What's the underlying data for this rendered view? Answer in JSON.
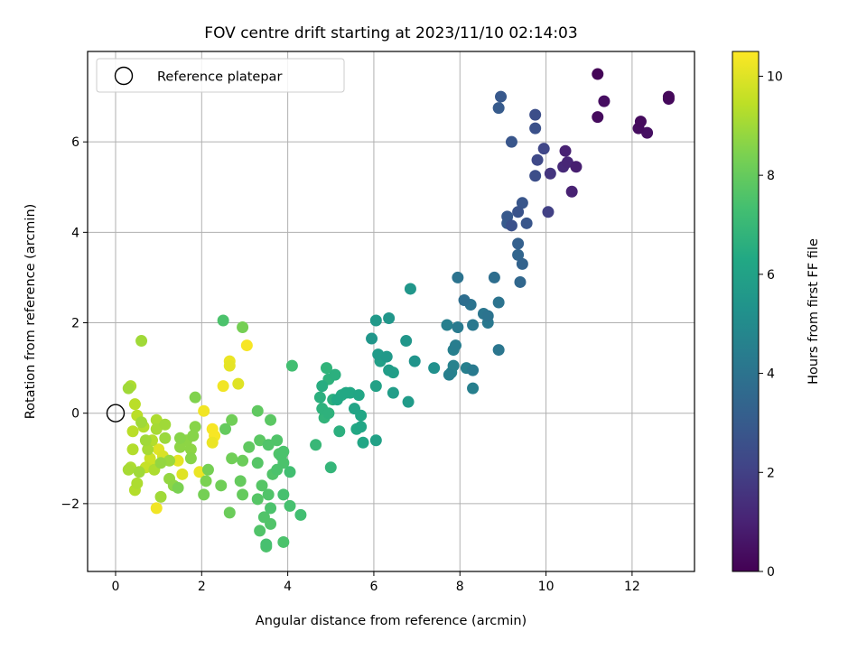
{
  "chart_data": {
    "type": "scatter",
    "title": "FOV centre drift starting at 2023/11/10 02:14:03",
    "xlabel": "Angular distance from reference (arcmin)",
    "ylabel": "Rotation from reference (arcmin)",
    "xlim": [
      -0.65,
      13.45
    ],
    "ylim": [
      -3.5,
      8.0
    ],
    "xticks": [
      0,
      2,
      4,
      6,
      8,
      10,
      12
    ],
    "yticks": [
      -2,
      0,
      2,
      4,
      6
    ],
    "grid": true,
    "legend": {
      "placement": "top-left",
      "entries": [
        "Reference platepar"
      ]
    },
    "reference_point": {
      "x": 0,
      "y": 0,
      "label": "Reference platepar"
    },
    "colorbar": {
      "label": "Hours from first FF file",
      "colormap": "viridis",
      "range": [
        0,
        10.5
      ],
      "ticks": [
        0,
        2,
        4,
        6,
        8,
        10
      ]
    },
    "points": [
      [
        11.2,
        7.5,
        0.1
      ],
      [
        12.85,
        7.0,
        0.2
      ],
      [
        12.85,
        6.95,
        0.25
      ],
      [
        11.35,
        6.9,
        0.4
      ],
      [
        12.2,
        6.45,
        0.3
      ],
      [
        12.15,
        6.3,
        0.35
      ],
      [
        12.35,
        6.2,
        0.45
      ],
      [
        11.2,
        6.55,
        0.3
      ],
      [
        10.45,
        5.8,
        1.0
      ],
      [
        10.5,
        5.55,
        1.1
      ],
      [
        10.4,
        5.45,
        1.2
      ],
      [
        10.7,
        5.45,
        0.9
      ],
      [
        10.6,
        4.9,
        1.0
      ],
      [
        10.1,
        5.3,
        1.6
      ],
      [
        9.95,
        5.85,
        2.2
      ],
      [
        9.8,
        5.6,
        2.3
      ],
      [
        9.75,
        5.25,
        2.5
      ],
      [
        10.05,
        4.45,
        2.0
      ],
      [
        9.75,
        6.6,
        2.5
      ],
      [
        9.75,
        6.3,
        2.6
      ],
      [
        9.2,
        6.0,
        2.8
      ],
      [
        8.95,
        7.0,
        2.9
      ],
      [
        8.9,
        6.75,
        3.0
      ],
      [
        9.45,
        4.65,
        2.8
      ],
      [
        9.35,
        4.45,
        2.7
      ],
      [
        9.55,
        4.2,
        2.8
      ],
      [
        9.1,
        4.35,
        2.9
      ],
      [
        9.1,
        4.2,
        3.0
      ],
      [
        9.2,
        4.15,
        2.6
      ],
      [
        9.35,
        3.75,
        3.2
      ],
      [
        9.35,
        3.5,
        3.4
      ],
      [
        9.45,
        3.3,
        3.3
      ],
      [
        9.4,
        2.9,
        3.5
      ],
      [
        8.8,
        3.0,
        3.8
      ],
      [
        7.95,
        3.0,
        4.0
      ],
      [
        8.9,
        2.45,
        4.0
      ],
      [
        8.1,
        2.5,
        3.8
      ],
      [
        8.25,
        2.4,
        4.0
      ],
      [
        8.55,
        2.2,
        4.1
      ],
      [
        8.65,
        2.15,
        4.0
      ],
      [
        8.65,
        2.0,
        4.2
      ],
      [
        7.7,
        1.95,
        4.5
      ],
      [
        7.95,
        1.9,
        4.3
      ],
      [
        8.3,
        1.95,
        4.2
      ],
      [
        7.85,
        1.4,
        4.5
      ],
      [
        7.9,
        1.5,
        4.4
      ],
      [
        8.9,
        1.4,
        4.1
      ],
      [
        7.85,
        1.05,
        4.6
      ],
      [
        8.15,
        1.0,
        4.5
      ],
      [
        8.3,
        0.95,
        4.3
      ],
      [
        7.8,
        0.9,
        4.7
      ],
      [
        7.75,
        0.85,
        4.5
      ],
      [
        8.3,
        0.55,
        4.5
      ],
      [
        7.4,
        1.0,
        5.2
      ],
      [
        6.85,
        2.75,
        5.5
      ],
      [
        6.35,
        2.1,
        5.5
      ],
      [
        6.05,
        2.05,
        5.6
      ],
      [
        5.95,
        1.65,
        5.5
      ],
      [
        6.75,
        1.6,
        5.5
      ],
      [
        6.1,
        1.3,
        5.7
      ],
      [
        6.3,
        1.25,
        5.6
      ],
      [
        6.95,
        1.15,
        5.4
      ],
      [
        6.15,
        1.15,
        5.9
      ],
      [
        6.35,
        0.95,
        5.8
      ],
      [
        6.45,
        0.9,
        5.9
      ],
      [
        6.05,
        0.6,
        6.0
      ],
      [
        6.45,
        0.45,
        5.8
      ],
      [
        6.8,
        0.25,
        5.7
      ],
      [
        6.05,
        -0.6,
        6.0
      ],
      [
        5.75,
        -0.65,
        6.2
      ],
      [
        5.7,
        -0.3,
        6.2
      ],
      [
        5.6,
        -0.35,
        6.3
      ],
      [
        5.55,
        0.1,
        6.1
      ],
      [
        5.7,
        -0.05,
        6.2
      ],
      [
        5.65,
        0.4,
        6.2
      ],
      [
        5.45,
        0.45,
        6.3
      ],
      [
        5.35,
        0.45,
        6.3
      ],
      [
        5.25,
        0.4,
        6.4
      ],
      [
        5.15,
        0.3,
        6.3
      ],
      [
        5.2,
        -0.4,
        6.6
      ],
      [
        5.1,
        0.85,
        6.6
      ],
      [
        4.9,
        1.0,
        6.8
      ],
      [
        4.95,
        0.75,
        6.7
      ],
      [
        4.8,
        0.6,
        6.5
      ],
      [
        4.75,
        0.35,
        6.6
      ],
      [
        4.8,
        0.1,
        6.7
      ],
      [
        4.85,
        -0.1,
        6.8
      ],
      [
        4.95,
        0.0,
        6.7
      ],
      [
        5.05,
        0.3,
        6.6
      ],
      [
        4.65,
        -0.7,
        7.0
      ],
      [
        5.0,
        -1.2,
        6.9
      ],
      [
        4.1,
        1.05,
        7.3
      ],
      [
        4.3,
        -2.25,
        7.3
      ],
      [
        4.05,
        -2.05,
        7.4
      ],
      [
        4.05,
        -1.3,
        7.3
      ],
      [
        3.9,
        -1.8,
        7.4
      ],
      [
        3.9,
        -1.1,
        7.5
      ],
      [
        3.9,
        -0.85,
        7.5
      ],
      [
        3.85,
        -0.95,
        7.5
      ],
      [
        3.8,
        -0.9,
        7.6
      ],
      [
        3.9,
        -2.85,
        7.5
      ],
      [
        3.75,
        -0.6,
        7.6
      ],
      [
        3.75,
        -1.25,
        7.5
      ],
      [
        3.65,
        -1.35,
        7.6
      ],
      [
        3.6,
        -2.1,
        7.5
      ],
      [
        3.6,
        -2.45,
        7.6
      ],
      [
        3.55,
        -1.8,
        7.6
      ],
      [
        3.5,
        -2.9,
        7.4
      ],
      [
        3.5,
        -2.95,
        7.5
      ],
      [
        3.45,
        -2.3,
        7.6
      ],
      [
        3.4,
        -1.6,
        7.7
      ],
      [
        3.35,
        -2.6,
        7.6
      ],
      [
        3.3,
        -1.9,
        7.7
      ],
      [
        3.3,
        -1.1,
        7.7
      ],
      [
        3.35,
        -0.6,
        7.8
      ],
      [
        3.6,
        -0.15,
        7.8
      ],
      [
        3.55,
        -0.7,
        7.6
      ],
      [
        3.3,
        0.05,
        7.9
      ],
      [
        3.1,
        -0.75,
        7.9
      ],
      [
        2.95,
        -1.05,
        8.1
      ],
      [
        2.9,
        -1.5,
        8.0
      ],
      [
        2.95,
        -1.8,
        8.0
      ],
      [
        2.65,
        -2.2,
        8.1
      ],
      [
        2.7,
        -1.0,
        8.2
      ],
      [
        2.7,
        -0.15,
        8.2
      ],
      [
        2.55,
        -0.35,
        8.0
      ],
      [
        2.45,
        -1.6,
        8.2
      ],
      [
        2.15,
        -1.25,
        8.3
      ],
      [
        2.05,
        -1.8,
        8.3
      ],
      [
        2.1,
        -1.5,
        8.4
      ],
      [
        2.95,
        1.9,
        8.3
      ],
      [
        2.5,
        2.05,
        7.5
      ],
      [
        1.85,
        0.35,
        8.5
      ],
      [
        1.85,
        -0.3,
        8.6
      ],
      [
        1.8,
        -0.5,
        8.6
      ],
      [
        1.75,
        -0.8,
        8.7
      ],
      [
        1.75,
        -1.0,
        8.6
      ],
      [
        1.65,
        -0.6,
        8.7
      ],
      [
        1.5,
        -0.55,
        8.6
      ],
      [
        1.5,
        -0.75,
        8.7
      ],
      [
        1.45,
        -1.65,
        8.4
      ],
      [
        1.35,
        -1.6,
        8.7
      ],
      [
        1.25,
        -1.45,
        8.8
      ],
      [
        1.25,
        -1.05,
        8.9
      ],
      [
        1.15,
        -0.55,
        8.9
      ],
      [
        1.15,
        -0.25,
        9.0
      ],
      [
        1.05,
        -1.85,
        9.0
      ],
      [
        1.05,
        -1.1,
        8.8
      ],
      [
        0.95,
        -0.35,
        9.1
      ],
      [
        0.95,
        -0.15,
        9.2
      ],
      [
        0.9,
        -1.25,
        9.2
      ],
      [
        0.85,
        -0.6,
        9.3
      ],
      [
        0.75,
        -0.8,
        9.1
      ],
      [
        0.7,
        -0.6,
        9.0
      ],
      [
        0.65,
        -0.3,
        9.3
      ],
      [
        0.6,
        -0.2,
        9.0
      ],
      [
        0.6,
        1.6,
        9.0
      ],
      [
        0.55,
        -1.3,
        9.0
      ],
      [
        0.5,
        -0.05,
        9.4
      ],
      [
        0.5,
        -1.55,
        9.2
      ],
      [
        0.45,
        0.2,
        9.4
      ],
      [
        0.45,
        -1.7,
        9.3
      ],
      [
        0.4,
        -0.4,
        9.4
      ],
      [
        0.4,
        -0.8,
        9.3
      ],
      [
        0.35,
        0.6,
        9.2
      ],
      [
        0.35,
        -1.2,
        9.2
      ],
      [
        0.3,
        0.55,
        9.0
      ],
      [
        0.3,
        -1.25,
        9.1
      ],
      [
        0.7,
        -1.2,
        9.6
      ],
      [
        0.8,
        -1.0,
        9.7
      ],
      [
        0.95,
        -2.1,
        10.3
      ],
      [
        0.85,
        -1.15,
        9.8
      ],
      [
        1.0,
        -0.8,
        10.0
      ],
      [
        1.1,
        -0.95,
        9.9
      ],
      [
        1.45,
        -1.05,
        10.1
      ],
      [
        1.55,
        -1.35,
        10.0
      ],
      [
        1.95,
        -1.3,
        10.2
      ],
      [
        2.05,
        0.05,
        10.3
      ],
      [
        2.25,
        -0.35,
        10.4
      ],
      [
        2.3,
        -0.5,
        10.4
      ],
      [
        2.25,
        -0.65,
        10.2
      ],
      [
        2.5,
        0.6,
        10.3
      ],
      [
        2.65,
        1.15,
        10.2
      ],
      [
        2.65,
        1.05,
        10.1
      ],
      [
        2.85,
        0.65,
        10.0
      ],
      [
        3.05,
        1.5,
        10.4
      ]
    ]
  }
}
